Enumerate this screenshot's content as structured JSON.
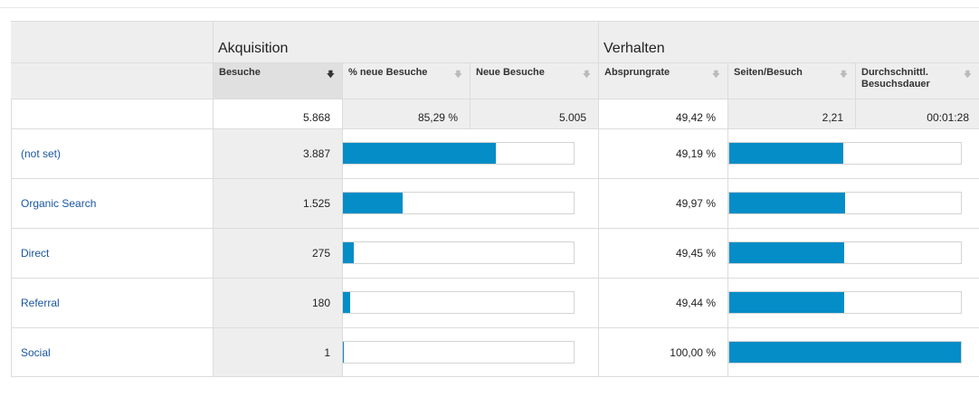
{
  "groups": {
    "acquisition": "Akquisition",
    "behavior": "Verhalten"
  },
  "columns": {
    "sessions": "Besuche",
    "pct_new_sessions": "% neue Besuche",
    "new_sessions": "Neue Besuche",
    "bounce_rate": "Absprungrate",
    "pages_per_session": "Seiten/Besuch",
    "avg_duration": "Durchschnittl. Besuchsdauer"
  },
  "totals": {
    "sessions": "5.868",
    "pct_new_sessions": "85,29 %",
    "new_sessions": "5.005",
    "bounce_rate": "49,42 %",
    "pages_per_session": "2,21",
    "avg_duration": "00:01:28"
  },
  "rows": [
    {
      "name": "(not set)",
      "sessions": "3.887",
      "sessions_share": 0.6624,
      "bounce_rate": "49,19 %",
      "bounce_share": 0.4919
    },
    {
      "name": "Organic Search",
      "sessions": "1.525",
      "sessions_share": 0.2599,
      "bounce_rate": "49,97 %",
      "bounce_share": 0.4997
    },
    {
      "name": "Direct",
      "sessions": "275",
      "sessions_share": 0.0469,
      "bounce_rate": "49,45 %",
      "bounce_share": 0.4945
    },
    {
      "name": "Referral",
      "sessions": "180",
      "sessions_share": 0.0307,
      "bounce_rate": "49,44 %",
      "bounce_share": 0.4944
    },
    {
      "name": "Social",
      "sessions": "1",
      "sessions_share": 0.0002,
      "bounce_rate": "100,00 %",
      "bounce_share": 1.0
    }
  ],
  "colors": {
    "bar": "#058dc7",
    "link": "#1a56a0"
  },
  "icons": {
    "sort_active": "sort-down-arrow-icon",
    "sort_inactive": "sort-arrow-icon"
  }
}
